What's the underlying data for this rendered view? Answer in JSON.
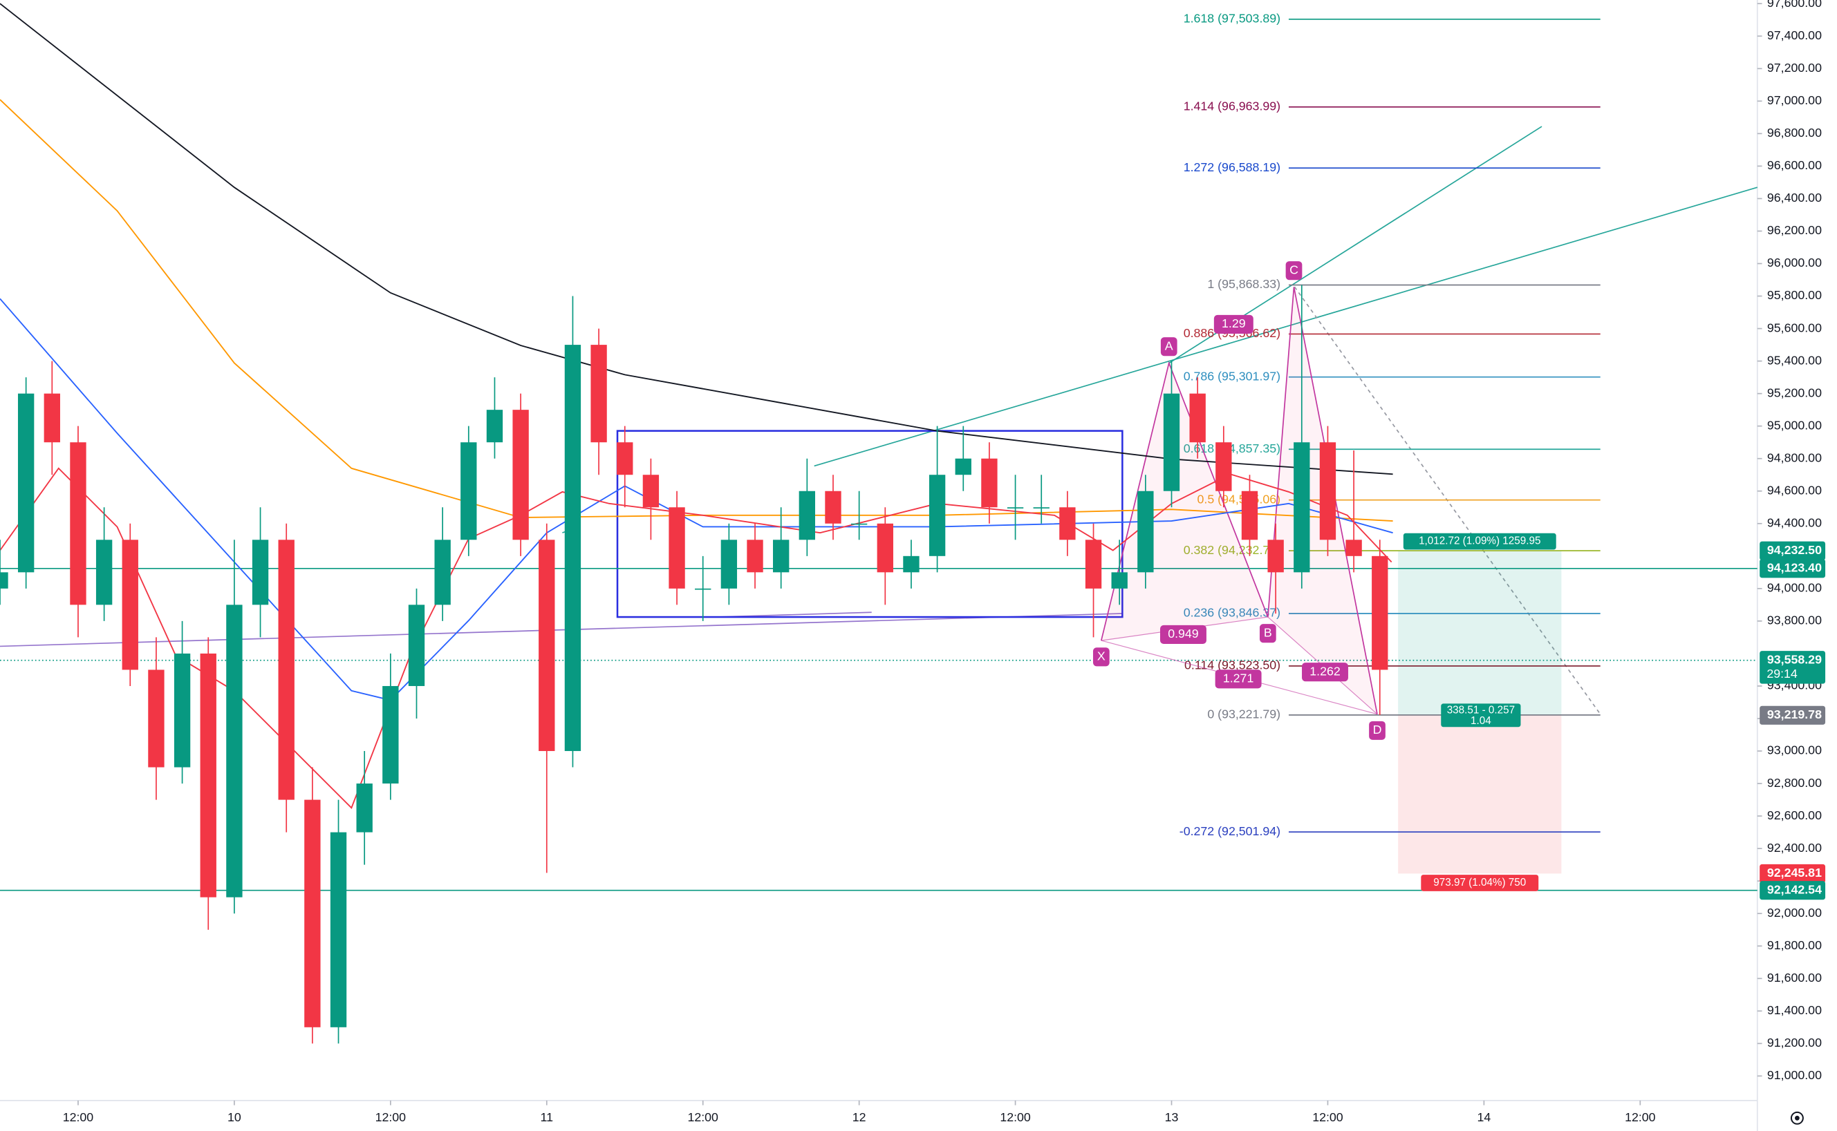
{
  "chart_data": {
    "type": "candlestick",
    "xlim": [
      6,
      141
    ],
    "ylim": [
      90849,
      97622
    ],
    "xticks": [
      {
        "value": 12,
        "label": "12:00"
      },
      {
        "value": 24,
        "label": "10"
      },
      {
        "value": 36,
        "label": "12:00"
      },
      {
        "value": 48,
        "label": "11"
      },
      {
        "value": 60,
        "label": "12:00"
      },
      {
        "value": 72,
        "label": "12"
      },
      {
        "value": 84,
        "label": "12:00"
      },
      {
        "value": 96,
        "label": "13"
      },
      {
        "value": 108,
        "label": "12:00"
      },
      {
        "value": 120,
        "label": "14"
      },
      {
        "value": 132,
        "label": "12:00"
      }
    ],
    "yticks": [
      {
        "value": 91000,
        "label": "91,000.00"
      },
      {
        "value": 91200,
        "label": "91,200.00"
      },
      {
        "value": 91400,
        "label": "91,400.00"
      },
      {
        "value": 91600,
        "label": "91,600.00"
      },
      {
        "value": 91800,
        "label": "91,800.00"
      },
      {
        "value": 92000,
        "label": "92,000.00"
      },
      {
        "value": 92200,
        "label": "92,200.00"
      },
      {
        "value": 92400,
        "label": "92,400.00"
      },
      {
        "value": 92600,
        "label": "92,600.00"
      },
      {
        "value": 92800,
        "label": "92,800.00"
      },
      {
        "value": 93000,
        "label": "93,000.00"
      },
      {
        "value": 93200,
        "label": "93,200.00"
      },
      {
        "value": 93400,
        "label": "93,400.00"
      },
      {
        "value": 93800,
        "label": "93,800.00"
      },
      {
        "value": 94000,
        "label": "94,000.00"
      },
      {
        "value": 94400,
        "label": "94,400.00"
      },
      {
        "value": 94600,
        "label": "94,600.00"
      },
      {
        "value": 94800,
        "label": "94,800.00"
      },
      {
        "value": 95000,
        "label": "95,000.00"
      },
      {
        "value": 95200,
        "label": "95,200.00"
      },
      {
        "value": 95400,
        "label": "95,400.00"
      },
      {
        "value": 95600,
        "label": "95,600.00"
      },
      {
        "value": 95800,
        "label": "95,800.00"
      },
      {
        "value": 96000,
        "label": "96,000.00"
      },
      {
        "value": 96200,
        "label": "96,200.00"
      },
      {
        "value": 96400,
        "label": "96,400.00"
      },
      {
        "value": 96600,
        "label": "96,600.00"
      },
      {
        "value": 96800,
        "label": "96,800.00"
      },
      {
        "value": 97000,
        "label": "97,000.00"
      },
      {
        "value": 97200,
        "label": "97,200.00"
      },
      {
        "value": 97400,
        "label": "97,400.00"
      },
      {
        "value": 97600,
        "label": "97,600.00"
      }
    ],
    "candles": {
      "up_color": "#089981",
      "down_color": "#f23645",
      "x": [
        6,
        8,
        10,
        12,
        14,
        16,
        18,
        20,
        22,
        24,
        26,
        28,
        30,
        32,
        34,
        36,
        38,
        40,
        42,
        44,
        46,
        48,
        50,
        52,
        54,
        56,
        58,
        60,
        62,
        64,
        66,
        68,
        70,
        72,
        74,
        76,
        78,
        80,
        82,
        84,
        86,
        88,
        90,
        92,
        94,
        96,
        98,
        100,
        102,
        104,
        106,
        108,
        110,
        112
      ],
      "ohlc": [
        [
          94000,
          94300,
          93900,
          94100
        ],
        [
          94100,
          95300,
          94000,
          95200
        ],
        [
          95200,
          95400,
          94700,
          94900
        ],
        [
          94900,
          95000,
          93700,
          93900
        ],
        [
          93900,
          94500,
          93800,
          94300
        ],
        [
          94300,
          94400,
          93400,
          93500
        ],
        [
          93500,
          93700,
          92700,
          92900
        ],
        [
          92900,
          93800,
          92800,
          93600
        ],
        [
          93600,
          93700,
          91900,
          92100
        ],
        [
          92100,
          94300,
          92000,
          93900
        ],
        [
          93900,
          94500,
          93700,
          94300
        ],
        [
          94300,
          94400,
          92500,
          92700
        ],
        [
          92700,
          92900,
          91200,
          91300
        ],
        [
          91300,
          92700,
          91200,
          92500
        ],
        [
          92500,
          93000,
          92300,
          92800
        ],
        [
          92800,
          93600,
          92700,
          93400
        ],
        [
          93400,
          94000,
          93200,
          93900
        ],
        [
          93900,
          94500,
          93800,
          94300
        ],
        [
          94300,
          95000,
          94200,
          94900
        ],
        [
          94900,
          95300,
          94800,
          95100
        ],
        [
          95100,
          95200,
          94200,
          94300
        ],
        [
          94300,
          94400,
          92250,
          93000
        ],
        [
          93000,
          95800,
          92900,
          95500
        ],
        [
          95500,
          95600,
          94700,
          94900
        ],
        [
          94900,
          95000,
          94500,
          94700
        ],
        [
          94700,
          94800,
          94300,
          94500
        ],
        [
          94500,
          94600,
          93900,
          94000
        ],
        [
          94000,
          94200,
          93800,
          94000
        ],
        [
          94000,
          94400,
          93900,
          94300
        ],
        [
          94300,
          94400,
          94000,
          94100
        ],
        [
          94100,
          94500,
          94000,
          94300
        ],
        [
          94300,
          94800,
          94200,
          94600
        ],
        [
          94600,
          94700,
          94300,
          94400
        ],
        [
          94400,
          94600,
          94300,
          94400
        ],
        [
          94400,
          94500,
          93900,
          94100
        ],
        [
          94100,
          94300,
          94000,
          94200
        ],
        [
          94200,
          95000,
          94100,
          94700
        ],
        [
          94700,
          95000,
          94600,
          94800
        ],
        [
          94800,
          94900,
          94400,
          94500
        ],
        [
          94500,
          94700,
          94300,
          94500
        ],
        [
          94500,
          94700,
          94400,
          94500
        ],
        [
          94500,
          94600,
          94200,
          94300
        ],
        [
          94300,
          94400,
          93700,
          94000
        ],
        [
          94000,
          94300,
          93900,
          94100
        ],
        [
          94100,
          94700,
          94000,
          94600
        ],
        [
          94600,
          95400,
          94500,
          95200
        ],
        [
          95200,
          95300,
          94800,
          94900
        ],
        [
          94900,
          95000,
          94500,
          94600
        ],
        [
          94600,
          94700,
          94200,
          94300
        ],
        [
          94300,
          94400,
          93846,
          94100
        ],
        [
          94100,
          95868,
          94000,
          94900
        ],
        [
          94900,
          95000,
          94200,
          94300
        ],
        [
          94300,
          94850,
          94100,
          94200
        ],
        [
          94200,
          94300,
          93222,
          93500
        ]
      ]
    },
    "moving_averages": [
      {
        "color": "#131722",
        "x": [
          6,
          24,
          36,
          46,
          54,
          78,
          96,
          113
        ],
        "values": [
          97600,
          96469,
          95820,
          95496,
          95316,
          94970,
          94797,
          94704
        ]
      },
      {
        "color": "#ff9800",
        "x": [
          6,
          15,
          24,
          33,
          46,
          60,
          78,
          96,
          113
        ],
        "values": [
          97009,
          96325,
          95388,
          94740,
          94437,
          94451,
          94451,
          94487,
          94416
        ]
      },
      {
        "color": "#2962ff",
        "x": [
          6,
          15,
          24,
          33,
          36,
          42,
          48,
          54,
          60,
          78,
          96,
          105,
          113
        ],
        "values": [
          95784,
          94956,
          94163,
          93371,
          93313,
          93803,
          94343,
          94631,
          94380,
          94380,
          94416,
          94523,
          94343
        ]
      },
      {
        "color": "#f23645",
        "x": [
          6,
          10.5,
          15,
          19.5,
          24,
          28.5,
          33,
          37.5,
          42,
          46,
          49.2,
          52.8,
          60,
          69,
          78,
          87,
          91.5,
          96,
          100.5,
          105,
          109.5,
          112.9
        ],
        "values": [
          94235,
          94740,
          94380,
          93587,
          93370,
          93010,
          92650,
          93587,
          94307,
          94451,
          94595,
          94523,
          94451,
          94343,
          94523,
          94451,
          94235,
          94523,
          94704,
          94595,
          94451,
          94163
        ]
      }
    ],
    "fib_levels": [
      {
        "label": "1.618 (97,503.89)",
        "value": 97503.89,
        "color": "#089981"
      },
      {
        "label": "1.414 (96,963.99)",
        "value": 96963.99,
        "color": "#880e4f"
      },
      {
        "label": "1.272 (96,588.19)",
        "value": 96588.19,
        "color": "#1848cc"
      },
      {
        "label": "1 (95,868.33)",
        "value": 95868.33,
        "color": "#787b86"
      },
      {
        "label": "0.886 (95,566.62)",
        "value": 95566.62,
        "color": "#b22833"
      },
      {
        "label": "0.786 (95,301.97)",
        "value": 95301.97,
        "color": "#2f8fbf"
      },
      {
        "label": "0.618 (94,857.35)",
        "value": 94857.35,
        "color": "#26a69a"
      },
      {
        "label": "0.5 (94,545.06)",
        "value": 94545.06,
        "color": "#f0a020"
      },
      {
        "label": "0.382 (94,232.77)",
        "value": 94232.77,
        "color": "#9bb72b"
      },
      {
        "label": "0.236 (93,846.37)",
        "value": 93846.37,
        "color": "#2f8fbf"
      },
      {
        "label": "0.114 (93,523.50)",
        "value": 93523.5,
        "color": "#7b1a2a"
      },
      {
        "label": "0 (93,221.79)",
        "value": 93221.79,
        "color": "#787b86"
      },
      {
        "label": "-0.272 (92,501.94)",
        "value": 92501.94,
        "color": "#2a3fbf"
      }
    ],
    "harmonic": {
      "color": "#c2369f",
      "points": [
        {
          "label": "X",
          "x": 90.6,
          "value": 93680
        },
        {
          "label": "A",
          "x": 95.8,
          "value": 95388
        },
        {
          "label": "B",
          "x": 103.4,
          "value": 93825
        },
        {
          "label": "C",
          "x": 105.4,
          "value": 95856
        },
        {
          "label": "D",
          "x": 111.8,
          "value": 93227
        }
      ],
      "ratios": [
        1.29,
        0.949,
        1.271,
        1.262
      ]
    },
    "position": {
      "x": [
        113.4,
        125.95
      ],
      "target": 94232.5,
      "entry": 93219.78,
      "stop": 92245.81,
      "target_label": "1,012.72 (1.09%) 1259.95",
      "center_label": [
        "338.51 - 0.257",
        "1.04"
      ],
      "stop_label": "973.97 (1.04%) 750"
    },
    "price_labels": [
      {
        "value": 94232.5,
        "label": "94,232.50",
        "color": "#089981",
        "line": "none"
      },
      {
        "value": 94123.4,
        "label": "94,123.40",
        "color": "#089981",
        "line": "solid"
      },
      {
        "value": 93558.29,
        "label": "93,558.29",
        "color": "#089981",
        "line": "dotted",
        "countdown": "29:14"
      },
      {
        "value": 93219.78,
        "label": "93,219.78",
        "color": "#787b86",
        "line": "none"
      },
      {
        "value": 92245.81,
        "label": "92,245.81",
        "color": "#f23645",
        "line": "none"
      },
      {
        "value": 92142.54,
        "label": "92,142.54",
        "color": "#089981",
        "line": "solid"
      }
    ]
  }
}
